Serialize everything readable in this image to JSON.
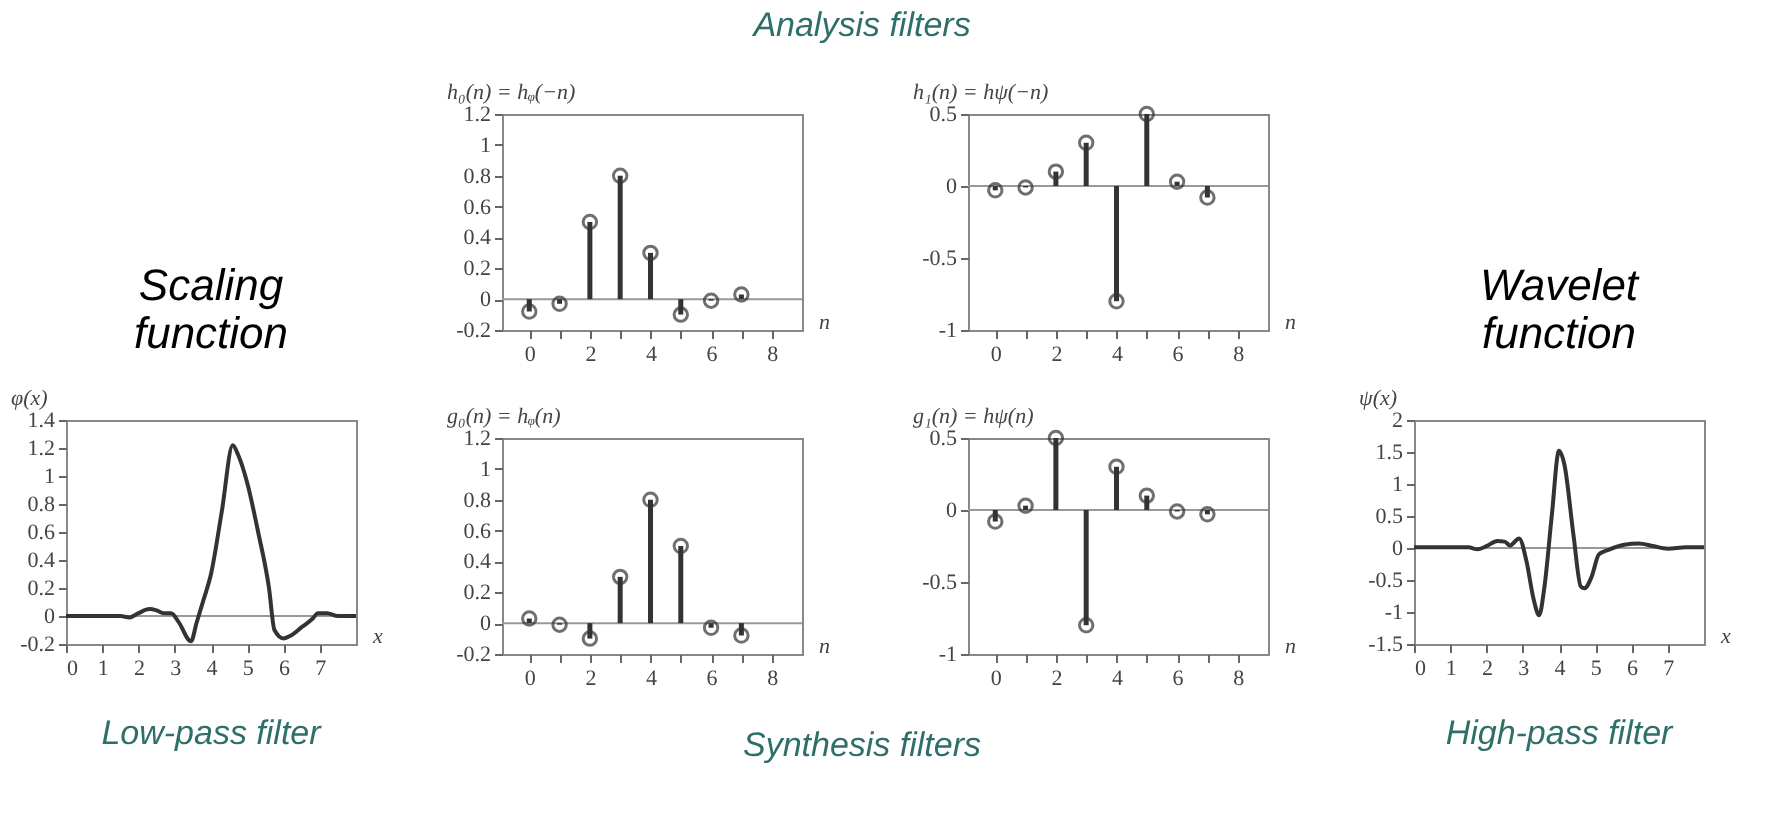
{
  "chart_data": [
    {
      "type": "line",
      "title": "Scaling function",
      "ylabel": "φ(x)",
      "xlabel": "x",
      "annotations": [
        "Low-pass filter"
      ],
      "x": [
        0,
        1.5,
        1.75,
        2,
        2.3,
        2.5,
        2.7,
        2.9,
        3.1,
        3.45,
        3.6,
        3.8,
        4,
        4.3,
        4.6,
        4.75,
        5,
        5.3,
        5.6,
        5.75,
        6,
        6.2,
        6.5,
        6.8,
        6.95,
        7.2,
        7.5,
        8
      ],
      "series": [
        {
          "color": "#333333",
          "values": [
            0,
            0,
            -0.01,
            0.02,
            0.05,
            0.04,
            0.02,
            0.02,
            -0.04,
            -0.18,
            -0.05,
            0.12,
            0.3,
            0.75,
            1.22,
            1.15,
            0.95,
            0.6,
            0.2,
            -0.1,
            -0.16,
            -0.14,
            -0.08,
            -0.02,
            0.02,
            0.02,
            0,
            0
          ]
        }
      ],
      "xlim": [
        0,
        8
      ],
      "xticks": [
        0,
        1,
        2,
        3,
        4,
        5,
        6,
        7
      ],
      "ylim": [
        -0.2,
        1.4
      ],
      "yticks": [
        -0.2,
        0,
        0.2,
        0.4,
        0.6,
        0.8,
        1,
        1.2,
        1.4
      ],
      "ref_lines": [
        {
          "axis": "y",
          "value": 0,
          "color": "#999999"
        }
      ]
    },
    {
      "type": "lollipop",
      "ylabel": "h₀(n) = hᵩ(−n)",
      "xlabel": "n",
      "annotations": [
        "Analysis filters"
      ],
      "marker": "circle",
      "x": [
        0,
        1,
        2,
        3,
        4,
        5,
        6,
        7
      ],
      "series": [
        {
          "color": "#333333",
          "values": [
            -0.08,
            -0.03,
            0.5,
            0.8,
            0.3,
            -0.1,
            -0.01,
            0.03
          ]
        }
      ],
      "xlim": [
        -0.9,
        9
      ],
      "xticks": [
        0,
        {
          "value": 1,
          "label": null
        },
        2,
        {
          "value": 3,
          "label": null
        },
        4,
        {
          "value": 5,
          "label": null
        },
        6,
        {
          "value": 7,
          "label": null
        },
        8
      ],
      "ylim": [
        -0.2,
        1.2
      ],
      "yticks": [
        -0.2,
        0,
        0.2,
        0.4,
        0.6,
        0.8,
        1,
        1.2
      ],
      "ref_lines": [
        {
          "axis": "y",
          "value": 0,
          "color": "#999999"
        }
      ]
    },
    {
      "type": "lollipop",
      "ylabel": "h₁(n) = hψ(−n)",
      "xlabel": "n",
      "marker": "circle",
      "x": [
        0,
        1,
        2,
        3,
        4,
        5,
        6,
        7
      ],
      "series": [
        {
          "color": "#333333",
          "values": [
            -0.03,
            -0.01,
            0.1,
            0.3,
            -0.8,
            0.5,
            0.03,
            -0.08
          ]
        }
      ],
      "xlim": [
        -0.9,
        9
      ],
      "xticks": [
        0,
        {
          "value": 1,
          "label": null
        },
        2,
        {
          "value": 3,
          "label": null
        },
        4,
        {
          "value": 5,
          "label": null
        },
        6,
        {
          "value": 7,
          "label": null
        },
        8
      ],
      "ylim": [
        -1,
        0.5
      ],
      "yticks": [
        -1,
        -0.5,
        0,
        0.5
      ],
      "ref_lines": [
        {
          "axis": "y",
          "value": 0,
          "color": "#999999"
        }
      ]
    },
    {
      "type": "lollipop",
      "ylabel": "g₀(n) = hᵩ(n)",
      "xlabel": "n",
      "annotations": [
        "Synthesis filters"
      ],
      "marker": "circle",
      "x": [
        0,
        1,
        2,
        3,
        4,
        5,
        6,
        7
      ],
      "series": [
        {
          "color": "#333333",
          "values": [
            0.03,
            -0.01,
            -0.1,
            0.3,
            0.8,
            0.5,
            -0.03,
            -0.08
          ]
        }
      ],
      "xlim": [
        -0.9,
        9
      ],
      "xticks": [
        0,
        {
          "value": 1,
          "label": null
        },
        2,
        {
          "value": 3,
          "label": null
        },
        4,
        {
          "value": 5,
          "label": null
        },
        6,
        {
          "value": 7,
          "label": null
        },
        8
      ],
      "ylim": [
        -0.2,
        1.2
      ],
      "yticks": [
        -0.2,
        0,
        0.2,
        0.4,
        0.6,
        0.8,
        1,
        1.2
      ],
      "ref_lines": [
        {
          "axis": "y",
          "value": 0,
          "color": "#999999"
        }
      ]
    },
    {
      "type": "lollipop",
      "ylabel": "g₁(n) = hψ(n)",
      "xlabel": "n",
      "marker": "circle",
      "x": [
        0,
        1,
        2,
        3,
        4,
        5,
        6,
        7
      ],
      "series": [
        {
          "color": "#333333",
          "values": [
            -0.08,
            0.03,
            0.5,
            -0.8,
            0.3,
            0.1,
            -0.01,
            -0.03
          ]
        }
      ],
      "xlim": [
        -0.9,
        9
      ],
      "xticks": [
        0,
        {
          "value": 1,
          "label": null
        },
        2,
        {
          "value": 3,
          "label": null
        },
        4,
        {
          "value": 5,
          "label": null
        },
        6,
        {
          "value": 7,
          "label": null
        },
        8
      ],
      "ylim": [
        -1,
        0.5
      ],
      "yticks": [
        -1,
        -0.5,
        0,
        0.5
      ],
      "ref_lines": [
        {
          "axis": "y",
          "value": 0,
          "color": "#999999"
        }
      ]
    },
    {
      "type": "line",
      "title": "Wavelet function",
      "ylabel": "ψ(x)",
      "xlabel": "x",
      "annotations": [
        "High-pass filter"
      ],
      "x": [
        0,
        1,
        1.5,
        1.75,
        2,
        2.3,
        2.5,
        2.65,
        2.9,
        3.1,
        3.3,
        3.45,
        3.6,
        3.8,
        4,
        4.15,
        4.4,
        4.6,
        4.7,
        4.9,
        5.1,
        5.4,
        5.8,
        6.2,
        6.6,
        7,
        7.5,
        8
      ],
      "series": [
        {
          "color": "#333333",
          "values": [
            0.01,
            0.01,
            0.01,
            -0.02,
            0.03,
            0.11,
            0.1,
            0.04,
            0.15,
            -0.2,
            -0.8,
            -1.05,
            -0.6,
            0.5,
            1.52,
            1.3,
            0.2,
            -0.6,
            -0.63,
            -0.45,
            -0.1,
            -0.02,
            0.05,
            0.07,
            0.03,
            -0.01,
            0.01,
            0.01
          ]
        }
      ],
      "xlim": [
        0,
        8
      ],
      "xticks": [
        0,
        1,
        2,
        3,
        4,
        5,
        6,
        7
      ],
      "ylim": [
        -1.5,
        2
      ],
      "yticks": [
        -1.5,
        -1,
        -0.5,
        0,
        0.5,
        1,
        1.5,
        2
      ],
      "ref_lines": [
        {
          "axis": "y",
          "value": 0,
          "color": "#999999"
        }
      ]
    }
  ]
}
